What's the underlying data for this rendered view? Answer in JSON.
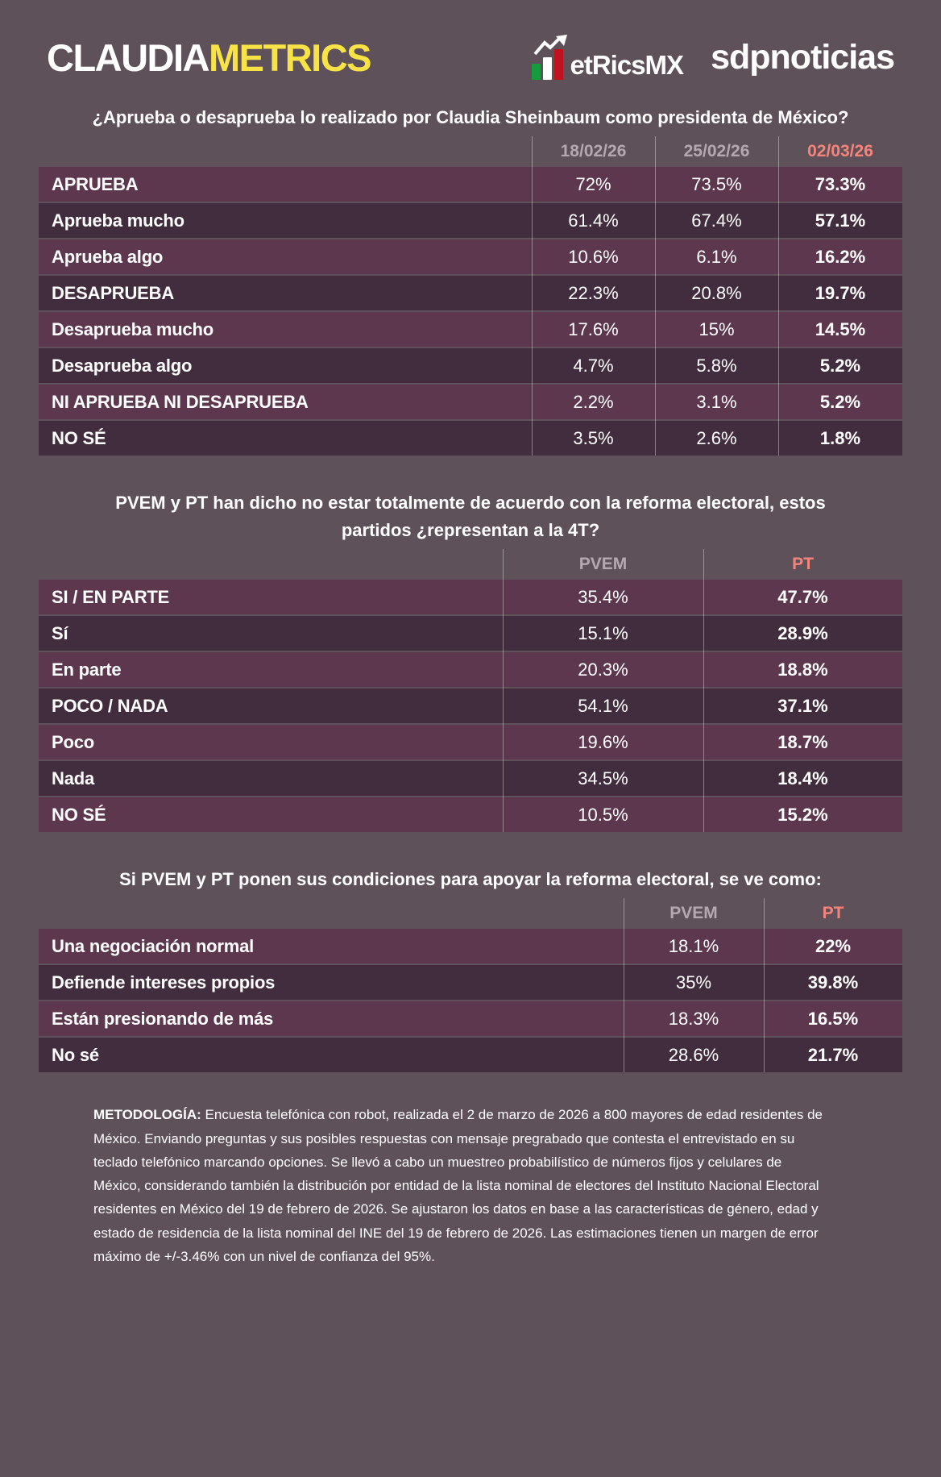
{
  "colors": {
    "background": "#5F5159",
    "row_light": "#5D374E",
    "row_dark": "#422D3E",
    "header_gray": "#B4A8B1",
    "highlight_salmon": "#F5857B",
    "brand_yellow": "#F8E347",
    "flag_green": "#169B3E",
    "flag_red": "#C0121F",
    "text": "#FFFFFF"
  },
  "header": {
    "brand_part1": "CLAUDIA",
    "brand_part2": "METRICS",
    "metricsmx_label": "etRicsMX",
    "sdpnoticias_label": "sdpnoticias"
  },
  "chart_data": [
    {
      "type": "table",
      "title": "¿Aprueba o desaprueba lo realizado por Claudia Sheinbaum como presidenta de México?",
      "columns": [
        "18/02/26",
        "25/02/26",
        "02/03/26"
      ],
      "highlighted_column": "02/03/26",
      "rows": [
        {
          "label": "APRUEBA",
          "values": [
            "72%",
            "73.5%",
            "73.3%"
          ]
        },
        {
          "label": "Aprueba mucho",
          "values": [
            "61.4%",
            "67.4%",
            "57.1%"
          ]
        },
        {
          "label": "Aprueba algo",
          "values": [
            "10.6%",
            "6.1%",
            "16.2%"
          ]
        },
        {
          "label": "DESAPRUEBA",
          "values": [
            "22.3%",
            "20.8%",
            "19.7%"
          ]
        },
        {
          "label": "Desaprueba mucho",
          "values": [
            "17.6%",
            "15%",
            "14.5%"
          ]
        },
        {
          "label": "Desaprueba algo",
          "values": [
            "4.7%",
            "5.8%",
            "5.2%"
          ]
        },
        {
          "label": "NI APRUEBA NI DESAPRUEBA",
          "values": [
            "2.2%",
            "3.1%",
            "5.2%"
          ]
        },
        {
          "label": "NO SÉ",
          "values": [
            "3.5%",
            "2.6%",
            "1.8%"
          ]
        }
      ]
    },
    {
      "type": "table",
      "title": "PVEM y PT han dicho no estar totalmente de acuerdo con la reforma electoral, estos partidos ¿representan a la 4T?",
      "columns": [
        "PVEM",
        "PT"
      ],
      "highlighted_column": "PT",
      "rows": [
        {
          "label": "SI / EN PARTE",
          "values": [
            "35.4%",
            "47.7%"
          ]
        },
        {
          "label": "Sí",
          "values": [
            "15.1%",
            "28.9%"
          ]
        },
        {
          "label": "En parte",
          "values": [
            "20.3%",
            "18.8%"
          ]
        },
        {
          "label": "POCO / NADA",
          "values": [
            "54.1%",
            "37.1%"
          ]
        },
        {
          "label": "Poco",
          "values": [
            "19.6%",
            "18.7%"
          ]
        },
        {
          "label": "Nada",
          "values": [
            "34.5%",
            "18.4%"
          ]
        },
        {
          "label": "NO SÉ",
          "values": [
            "10.5%",
            "15.2%"
          ]
        }
      ]
    },
    {
      "type": "table",
      "title": "Si PVEM y PT ponen sus condiciones para apoyar la reforma electoral, se ve como:",
      "columns": [
        "PVEM",
        "PT"
      ],
      "highlighted_column": "PT",
      "rows": [
        {
          "label": "Una negociación normal",
          "values": [
            "18.1%",
            "22%"
          ]
        },
        {
          "label": "Defiende intereses propios",
          "values": [
            "35%",
            "39.8%"
          ]
        },
        {
          "label": "Están presionando de más",
          "values": [
            "18.3%",
            "16.5%"
          ]
        },
        {
          "label": "No sé",
          "values": [
            "28.6%",
            "21.7%"
          ]
        }
      ]
    }
  ],
  "methodology": {
    "label": "METODOLOGÍA:",
    "text": "Encuesta telefónica con robot, realizada el 2 de marzo de 2026 a 800 mayores de edad residentes de México. Enviando preguntas y sus posibles respuestas con mensaje pregrabado que contesta el entrevistado en su teclado telefónico marcando opciones. Se llevó a cabo un muestreo probabilístico de números fijos y celulares de México, considerando también la distribución por entidad de la lista nominal de electores del Instituto Nacional Electoral residentes en México del 19 de febrero de 2026. Se ajustaron los datos en base a las características de género, edad y estado de residencia de la lista nominal del INE del 19 de febrero de 2026. Las estimaciones tienen un margen de error máximo de +/-3.46% con un nivel de confianza del 95%."
  }
}
